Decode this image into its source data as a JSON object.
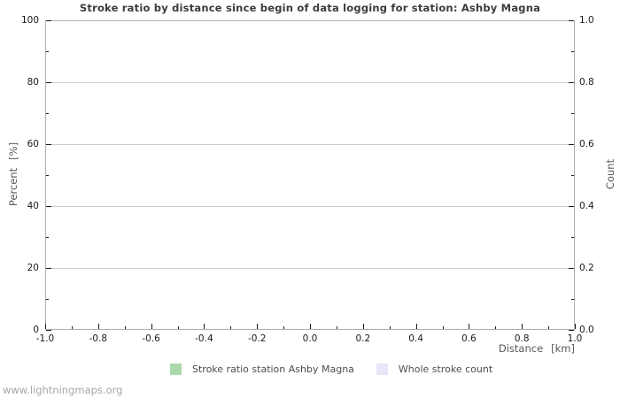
{
  "watermark": "www.lightningmaps.org",
  "chart_data": {
    "type": "line",
    "title": "Stroke ratio by distance since begin of data logging for station: Ashby Magna",
    "grid": true,
    "legend_position": "bottom",
    "x_axis": {
      "name": "Distance",
      "unit": "[km]",
      "range": [
        -1.0,
        1.0
      ],
      "major_ticks": [
        -1.0,
        -0.8,
        -0.6,
        -0.4,
        -0.2,
        0.0,
        0.2,
        0.4,
        0.6,
        0.8,
        1.0
      ],
      "major_labels": [
        "-1.0",
        "-0.8",
        "-0.6",
        "-0.4",
        "-0.2",
        "0.0",
        "0.2",
        "0.4",
        "0.6",
        "0.8",
        "1.0"
      ],
      "minor_ticks": [
        -0.9,
        -0.7,
        -0.5,
        -0.3,
        -0.1,
        0.1,
        0.3,
        0.5,
        0.7,
        0.9
      ]
    },
    "left_axis": {
      "name": "Percent",
      "unit": "[%]",
      "range": [
        0,
        100
      ],
      "major_ticks": [
        0,
        20,
        40,
        60,
        80,
        100
      ],
      "major_labels": [
        "0",
        "20",
        "40",
        "60",
        "80",
        "100"
      ],
      "minor_ticks": [
        10,
        30,
        50,
        70,
        90
      ]
    },
    "right_axis": {
      "name": "Count",
      "range": [
        0.0,
        1.0
      ],
      "major_ticks": [
        0.0,
        0.2,
        0.4,
        0.6,
        0.8,
        1.0
      ],
      "major_labels": [
        "0.0",
        "0.2",
        "0.4",
        "0.6",
        "0.8",
        "1.0"
      ],
      "minor_ticks": [
        0.1,
        0.3,
        0.5,
        0.7,
        0.9
      ]
    },
    "legend": [
      {
        "label": "Stroke ratio station Ashby Magna",
        "color": "#abd9ab"
      },
      {
        "label": "Whole stroke count",
        "color": "#e6e6f8"
      }
    ],
    "series": [
      {
        "name": "Stroke ratio station Ashby Magna",
        "axis": "left",
        "x": [],
        "y": []
      },
      {
        "name": "Whole stroke count",
        "axis": "right",
        "x": [],
        "y": []
      }
    ],
    "colors": {
      "frame": "#b0b0b0",
      "grid": "#cccccc",
      "tick": "#1a1a1a",
      "title_text": "#3c3c3c",
      "axis_name_text": "#595959",
      "tick_label_text": "#1a1a1a",
      "watermark_text": "#a6a6a6",
      "background": "#ffffff"
    }
  }
}
